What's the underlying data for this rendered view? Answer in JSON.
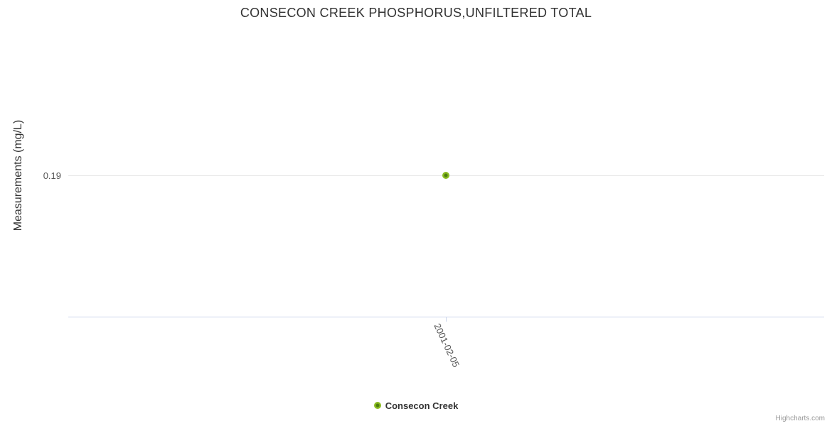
{
  "chart_data": {
    "type": "scatter",
    "title": "CONSECON CREEK PHOSPHORUS,UNFILTERED TOTAL",
    "xlabel": "",
    "ylabel": "Measurements (mg/L)",
    "grid": true,
    "legend_position": "bottom-center",
    "xticks": [
      "2001-02-05"
    ],
    "yticks": [
      "0.19"
    ],
    "series": [
      {
        "name": "Consecon Creek",
        "color": "#8bbc21",
        "points": [
          {
            "x": "2001-02-05",
            "y": 0.19
          }
        ]
      }
    ],
    "credit": "Highcharts.com"
  },
  "colors": {
    "series_green": "#8bbc21",
    "series_green_center": "#4e7e10",
    "gridline": "#e6e6e6",
    "axis_line": "#ccd6eb",
    "title_text": "#333333",
    "tick_text": "#555555",
    "credit_text": "#999999",
    "background": "#ffffff"
  }
}
